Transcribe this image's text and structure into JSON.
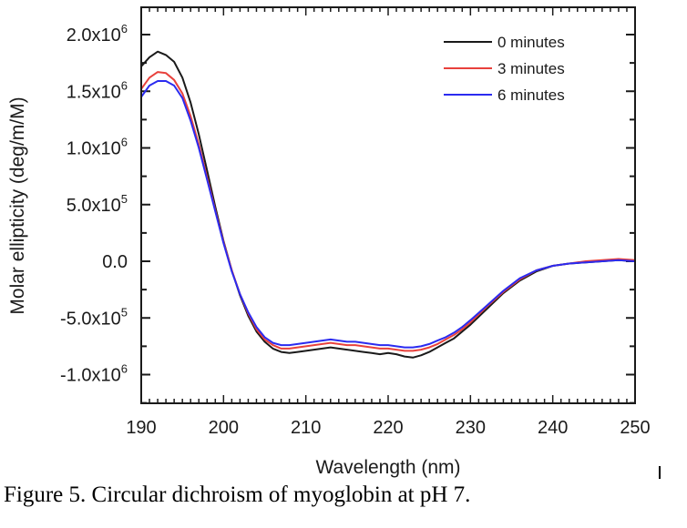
{
  "chart_data": {
    "type": "line",
    "title": "",
    "xlabel": "Wavelength (nm)",
    "ylabel": "Molar ellipticity (deg/m/M)",
    "xlim": [
      190,
      250
    ],
    "ylim": [
      -1250000.0,
      2200000.0
    ],
    "x_ticks": [
      190,
      200,
      210,
      220,
      230,
      240,
      250
    ],
    "x_tick_labels": [
      "190",
      "200",
      "210",
      "220",
      "230",
      "240",
      "250"
    ],
    "y_ticks": [
      2000000.0,
      1500000.0,
      1000000.0,
      500000.0,
      0.0,
      -500000.0,
      -1000000.0
    ],
    "y_tick_labels": [
      {
        "mantissa": "2.0x10",
        "exp": "6"
      },
      {
        "mantissa": "1.5x10",
        "exp": "6"
      },
      {
        "mantissa": "1.0x10",
        "exp": "6"
      },
      {
        "mantissa": "5.0x10",
        "exp": "5"
      },
      {
        "mantissa": "0.0",
        "exp": ""
      },
      {
        "mantissa": "-5.0x10",
        "exp": "5"
      },
      {
        "mantissa": "-1.0x10",
        "exp": "6"
      }
    ],
    "grid": false,
    "legend_position": "top-right",
    "x": [
      190,
      191,
      192,
      193,
      194,
      195,
      196,
      197,
      198,
      199,
      200,
      201,
      202,
      203,
      204,
      205,
      206,
      207,
      208,
      209,
      210,
      211,
      212,
      213,
      214,
      215,
      216,
      217,
      218,
      219,
      220,
      221,
      222,
      223,
      224,
      225,
      226,
      227,
      228,
      229,
      230,
      232,
      234,
      236,
      238,
      240,
      242,
      244,
      246,
      248,
      250
    ],
    "series": [
      {
        "name": "0 minutes",
        "color": "#1a1a1a",
        "values": [
          1720000.0,
          1800000.0,
          1850000.0,
          1820000.0,
          1760000.0,
          1620000.0,
          1400000.0,
          1120000.0,
          800000.0,
          480000.0,
          180000.0,
          -80000.0,
          -300000.0,
          -480000.0,
          -620000.0,
          -710000.0,
          -770000.0,
          -800000.0,
          -810000.0,
          -800000.0,
          -790000.0,
          -780000.0,
          -770000.0,
          -760000.0,
          -770000.0,
          -780000.0,
          -790000.0,
          -800000.0,
          -810000.0,
          -820000.0,
          -810000.0,
          -820000.0,
          -840000.0,
          -850000.0,
          -830000.0,
          -800000.0,
          -760000.0,
          -720000.0,
          -680000.0,
          -620000.0,
          -560000.0,
          -420000.0,
          -280000.0,
          -170000.0,
          -90000.0,
          -40000.0,
          -20000.0,
          -10000.0,
          0.0,
          10000.0,
          0.0
        ]
      },
      {
        "name": "3 minutes",
        "color": "#e8413c",
        "values": [
          1520000.0,
          1620000.0,
          1670000.0,
          1660000.0,
          1600000.0,
          1480000.0,
          1280000.0,
          1030000.0,
          740000.0,
          450000.0,
          170000.0,
          -80000.0,
          -290000.0,
          -460000.0,
          -600000.0,
          -690000.0,
          -740000.0,
          -770000.0,
          -770000.0,
          -760000.0,
          -750000.0,
          -740000.0,
          -730000.0,
          -720000.0,
          -730000.0,
          -740000.0,
          -740000.0,
          -750000.0,
          -760000.0,
          -770000.0,
          -770000.0,
          -780000.0,
          -790000.0,
          -790000.0,
          -780000.0,
          -760000.0,
          -730000.0,
          -690000.0,
          -650000.0,
          -600000.0,
          -540000.0,
          -400000.0,
          -270000.0,
          -160000.0,
          -80000.0,
          -40000.0,
          -20000.0,
          0.0,
          10000.0,
          20000.0,
          10000.0
        ]
      },
      {
        "name": "6 minutes",
        "color": "#2b2bf0",
        "values": [
          1450000.0,
          1550000.0,
          1590000.0,
          1590000.0,
          1550000.0,
          1440000.0,
          1240000.0,
          1000000.0,
          720000.0,
          440000.0,
          160000.0,
          -90000.0,
          -290000.0,
          -450000.0,
          -580000.0,
          -670000.0,
          -720000.0,
          -740000.0,
          -740000.0,
          -730000.0,
          -720000.0,
          -710000.0,
          -700000.0,
          -690000.0,
          -700000.0,
          -710000.0,
          -710000.0,
          -720000.0,
          -730000.0,
          -740000.0,
          -740000.0,
          -750000.0,
          -760000.0,
          -760000.0,
          -750000.0,
          -730000.0,
          -700000.0,
          -670000.0,
          -630000.0,
          -580000.0,
          -520000.0,
          -390000.0,
          -260000.0,
          -150000.0,
          -80000.0,
          -40000.0,
          -20000.0,
          -10000.0,
          0.0,
          10000.0,
          0.0
        ]
      }
    ]
  },
  "caption": "Figure 5. Circular dichroism of myoglobin at pH 7."
}
